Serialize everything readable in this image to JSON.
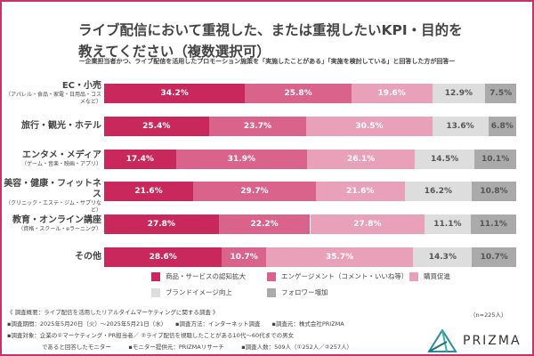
{
  "title_line1": "ライブ配信において重視した、または重視したいKPI・目的を",
  "title_line2": "教えてください（複数選択可）",
  "subtitle": "ー企業担当者かつ、ライブ配信を活用したプロモーション施策を「実施したことがある」「実施を検討している」と回答した方が回答ー",
  "chart_data": {
    "type": "bar",
    "orientation": "horizontal-stacked-100",
    "categories": [
      {
        "main": "EC・小売",
        "sub": "（アパレル・食品・家電・日用品・コスメなど）"
      },
      {
        "main": "旅行・観光・ホテル",
        "sub": ""
      },
      {
        "main": "エンタメ・メディア",
        "sub": "（ゲーム・音楽・映画・アプリ）"
      },
      {
        "main": "美容・健康・フィットネス",
        "sub": "（クリニック・エステ・ジム・サプリなど）"
      },
      {
        "main": "教育・オンライン講座",
        "sub": "（資格・スクール・eラーニング）"
      },
      {
        "main": "その他",
        "sub": ""
      }
    ],
    "series": [
      {
        "name": "商品・サービスの認知拡大",
        "color": "#c9285c",
        "text_color": "#ffffff",
        "values": [
          34.2,
          25.4,
          17.4,
          21.6,
          27.8,
          28.6
        ]
      },
      {
        "name": "エンゲージメント（コメント・いいね等）",
        "color": "#d9638a",
        "text_color": "#ffffff",
        "values": [
          25.8,
          23.7,
          31.9,
          29.7,
          22.2,
          10.7
        ]
      },
      {
        "name": "購買促進",
        "color": "#e9a1b9",
        "text_color": "#ffffff",
        "values": [
          19.6,
          30.5,
          26.1,
          21.6,
          27.8,
          35.7
        ]
      },
      {
        "name": "ブランドイメージ向上",
        "color": "#dddddd",
        "text_color": "#555555",
        "values": [
          12.9,
          13.6,
          14.5,
          16.2,
          11.1,
          14.3
        ]
      },
      {
        "name": "フォロワー増加",
        "color": "#aaaaaa",
        "text_color": "#555555",
        "values": [
          7.5,
          6.8,
          10.1,
          10.8,
          11.1,
          10.7
        ]
      }
    ],
    "value_suffix": "%",
    "legend_position": "bottom"
  },
  "sample": "（n=225人）",
  "footer": [
    "《 調査概要：ライブ配信を活用したリアルタイムマーケティングに関する調査 》",
    "▪調査期間：2025年5月20日（火）〜2025年5月21日（水）　　▪調査方法：インターネット調査　　▪調査元：株式会社PRIZMA",
    "▪調査対象：企業の①マーケティング・PR担当者／ ②ライブ配信を視聴したことがある10代〜60代までの男女",
    "　　　　　　であると回答したモニター　　　▪モニター提供元：PRIZMAリサーチ　　　▪調査人数：509人（①252人／②257人）"
  ],
  "logo": "PRIZMA"
}
